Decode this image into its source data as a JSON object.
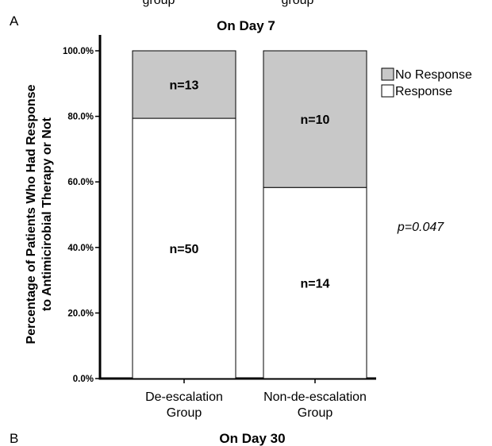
{
  "top_clipped_labels": [
    "group",
    "group"
  ],
  "panel_label": "A",
  "next_panel_label": "B",
  "next_panel_title": "On Day 30",
  "chart_data": {
    "type": "bar",
    "stacked": true,
    "title": "On Day 7",
    "ylabel_lines": [
      "Percentage of Patients Who Had Response",
      "to Antimicirobial Therapy or Not"
    ],
    "xlabel": "",
    "ylim": [
      0,
      100
    ],
    "y_ticks": [
      0,
      20,
      40,
      60,
      80,
      100
    ],
    "y_tick_labels": [
      "0.0%",
      "20.0%",
      "40.0%",
      "60.0%",
      "80.0%",
      "100.0%"
    ],
    "categories": [
      [
        "De-escalation",
        "Group"
      ],
      [
        "Non-de-escalation",
        "Group"
      ]
    ],
    "series": [
      {
        "name": "Response",
        "color": "#ffffff",
        "values": [
          79.4,
          58.3
        ],
        "labels": [
          "n=50",
          "n=14"
        ]
      },
      {
        "name": "No Response",
        "color": "#c8c8c8",
        "values": [
          20.6,
          41.7
        ],
        "labels": [
          "n=13",
          "n=10"
        ]
      }
    ],
    "legend": {
      "placement": "top-right",
      "order": [
        "No Response",
        "Response"
      ]
    },
    "annotation": "p=0.047",
    "grid": false
  }
}
